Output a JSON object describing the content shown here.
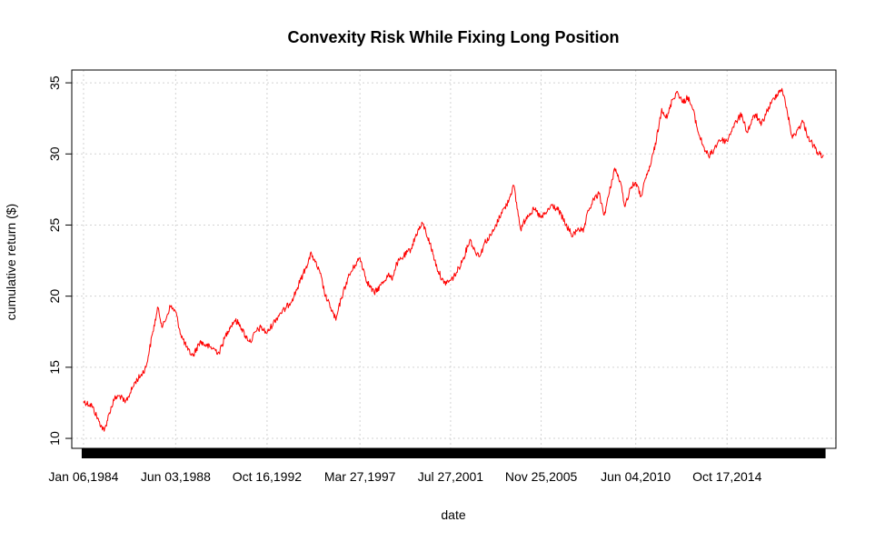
{
  "chart_data": {
    "type": "line",
    "title": "Convexity Risk While Fixing Long Position",
    "xlabel": "date",
    "ylabel": "cumulative return ($)",
    "x_tick_labels": [
      "Jan 06,1984",
      "Jun 03,1988",
      "Oct 16,1992",
      "Mar 27,1997",
      "Jul 27,2001",
      "Nov 25,2005",
      "Jun 04,2010",
      "Oct 17,2014"
    ],
    "y_tick_labels": [
      "10",
      "15",
      "20",
      "25",
      "30",
      "35"
    ],
    "y_ticks": [
      10,
      15,
      20,
      25,
      30,
      35
    ],
    "xlim": [
      "1983-06-15",
      "2019-12-31"
    ],
    "ylim": [
      9.3,
      35.9
    ],
    "grid": true,
    "series": [
      {
        "color": "#ff0000",
        "x": [
          "1984-01-06",
          "1984-06-01",
          "1984-10-01",
          "1985-01-01",
          "1985-04-01",
          "1985-07-01",
          "1985-10-01",
          "1986-01-01",
          "1986-04-01",
          "1986-07-01",
          "1986-10-01",
          "1987-01-01",
          "1987-03-01",
          "1987-05-01",
          "1987-08-01",
          "1987-10-15",
          "1988-01-01",
          "1988-03-01",
          "1988-06-03",
          "1988-09-01",
          "1989-01-01",
          "1989-04-01",
          "1989-08-01",
          "1989-12-01",
          "1990-04-01",
          "1990-07-01",
          "1990-10-01",
          "1991-01-01",
          "1991-04-01",
          "1991-07-01",
          "1991-10-01",
          "1992-01-01",
          "1992-04-01",
          "1992-07-01",
          "1992-10-16",
          "1993-02-01",
          "1993-06-01",
          "1993-09-01",
          "1994-01-01",
          "1994-03-01",
          "1994-06-01",
          "1994-09-01",
          "1994-12-01",
          "1995-02-01",
          "1995-05-01",
          "1995-08-01",
          "1995-11-01",
          "1996-02-01",
          "1996-05-01",
          "1996-09-01",
          "1997-01-01",
          "1997-03-27",
          "1997-08-01",
          "1997-12-01",
          "1998-04-01",
          "1998-08-01",
          "1998-10-01",
          "1999-01-01",
          "1999-05-01",
          "1999-09-01",
          "2000-01-01",
          "2000-04-01",
          "2000-08-01",
          "2000-12-01",
          "2001-04-01",
          "2001-07-27",
          "2001-11-01",
          "2002-03-01",
          "2002-07-01",
          "2002-10-01",
          "2003-01-01",
          "2003-03-15",
          "2003-06-01",
          "2003-09-01",
          "2004-01-01",
          "2004-04-01",
          "2004-08-01",
          "2004-12-01",
          "2005-04-01",
          "2005-08-01",
          "2005-11-25",
          "2006-03-01",
          "2006-06-01",
          "2006-10-01",
          "2007-02-01",
          "2007-06-01",
          "2007-09-01",
          "2007-12-01",
          "2008-01-15",
          "2008-03-01",
          "2008-06-01",
          "2008-09-01",
          "2008-12-01",
          "2009-03-01",
          "2009-06-01",
          "2009-09-01",
          "2009-12-01",
          "2010-03-01",
          "2010-06-04",
          "2010-09-01",
          "2010-12-01",
          "2011-03-01",
          "2011-06-01",
          "2011-09-01",
          "2011-12-01",
          "2012-03-01",
          "2012-06-01",
          "2012-09-01",
          "2012-12-01",
          "2013-03-01",
          "2013-06-01",
          "2013-09-01",
          "2013-12-01",
          "2014-03-01",
          "2014-06-01",
          "2014-10-17",
          "2015-01-15",
          "2015-04-01",
          "2015-07-01",
          "2015-10-01",
          "2016-01-01",
          "2016-03-01",
          "2016-06-01",
          "2016-09-01",
          "2016-12-01",
          "2017-03-01",
          "2017-06-01",
          "2017-09-01",
          "2017-12-01",
          "2018-03-01",
          "2018-06-01",
          "2018-09-01",
          "2018-12-01",
          "2019-03-01",
          "2019-06-01"
        ],
        "y": [
          12.6,
          12.3,
          11.2,
          10.5,
          11.8,
          12.8,
          13.0,
          12.5,
          13.2,
          14.0,
          14.4,
          15.0,
          16.2,
          17.5,
          19.2,
          17.8,
          18.6,
          19.3,
          18.9,
          17.3,
          16.2,
          15.8,
          16.8,
          16.5,
          16.3,
          16.0,
          17.0,
          17.8,
          18.3,
          18.0,
          17.2,
          16.8,
          17.5,
          17.8,
          17.4,
          18.1,
          18.8,
          19.1,
          19.8,
          20.3,
          21.2,
          22.1,
          23.0,
          22.4,
          21.6,
          20.0,
          19.2,
          18.3,
          19.8,
          21.3,
          22.2,
          22.7,
          21.0,
          20.2,
          20.8,
          21.5,
          21.2,
          22.3,
          22.8,
          23.3,
          24.6,
          25.1,
          23.7,
          22.0,
          20.9,
          21.1,
          21.6,
          22.6,
          24.0,
          23.1,
          22.9,
          23.8,
          24.1,
          24.7,
          25.9,
          26.4,
          27.8,
          24.7,
          25.7,
          26.1,
          25.5,
          25.9,
          26.4,
          26.0,
          25.0,
          24.2,
          24.8,
          24.5,
          25.3,
          26.0,
          26.8,
          27.2,
          25.7,
          27.3,
          29.0,
          28.1,
          26.3,
          27.6,
          28.0,
          27.0,
          28.3,
          29.4,
          31.0,
          33.2,
          32.5,
          33.8,
          34.4,
          33.6,
          34.0,
          33.1,
          31.5,
          30.5,
          29.8,
          30.3,
          31.0,
          30.9,
          31.8,
          32.3,
          32.8,
          31.5,
          32.4,
          32.8,
          32.0,
          32.9,
          33.6,
          34.2,
          34.6,
          33.0,
          31.1,
          31.7,
          32.3,
          31.2,
          30.6,
          30.0,
          29.9
        ]
      }
    ]
  }
}
